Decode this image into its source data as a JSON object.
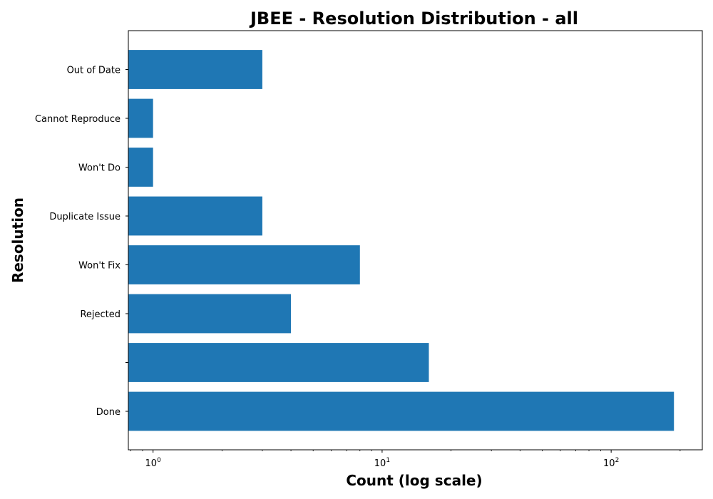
{
  "chart_data": {
    "type": "bar",
    "orientation": "horizontal",
    "title": "JBEE - Resolution Distribution - all",
    "xlabel": "Count (log scale)",
    "ylabel": "Resolution",
    "xscale": "log",
    "xlim": [
      0.78,
      250
    ],
    "xticks": [
      {
        "value": 1,
        "base": "10",
        "exp": "0"
      },
      {
        "value": 10,
        "base": "10",
        "exp": "1"
      },
      {
        "value": 100,
        "base": "10",
        "exp": "2"
      }
    ],
    "categories": [
      "Done",
      "",
      "Rejected",
      "Won't Fix",
      "Duplicate Issue",
      "Won't Do",
      "Cannot Reproduce",
      "Out of Date"
    ],
    "values": [
      188,
      16,
      4,
      8,
      3,
      1,
      1,
      3
    ],
    "bar_color": "#1f77b4",
    "grid": false
  }
}
